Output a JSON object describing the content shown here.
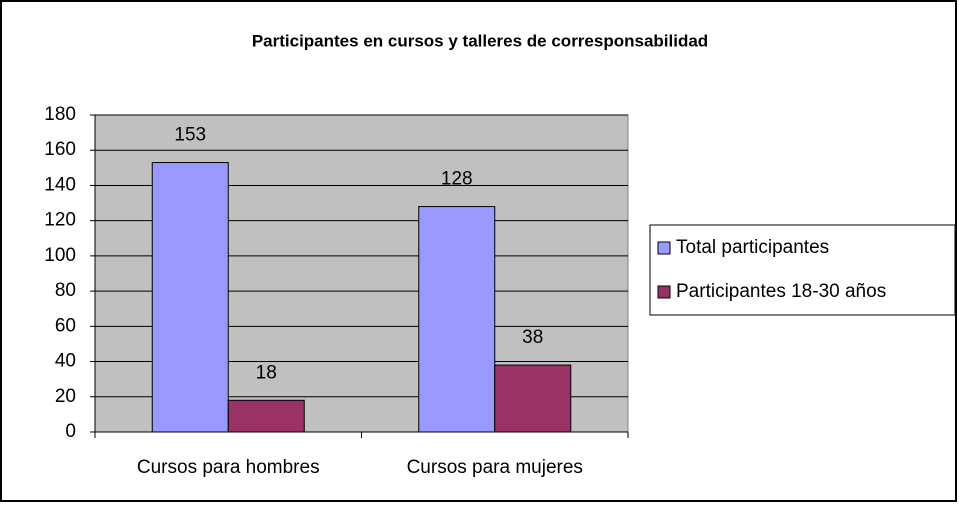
{
  "chart_data": {
    "type": "bar",
    "title": "Participantes en cursos y talleres de corresponsabilidad",
    "categories": [
      "Cursos para hombres",
      "Cursos para mujeres"
    ],
    "series": [
      {
        "name": "Total participantes",
        "color": "#9999ff",
        "values": [
          153,
          128
        ]
      },
      {
        "name": "Participantes 18-30 años",
        "color": "#993366",
        "values": [
          18,
          38
        ]
      }
    ],
    "ylim": [
      0,
      180
    ],
    "yticks": [
      0,
      20,
      40,
      60,
      80,
      100,
      120,
      140,
      160,
      180
    ],
    "grid": true,
    "legend": "right",
    "plot_background": "#c0c0c0"
  }
}
